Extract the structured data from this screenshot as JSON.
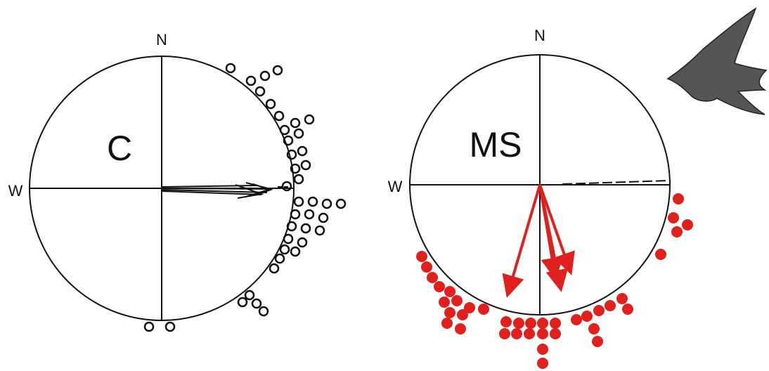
{
  "panels": [
    {
      "north": "N",
      "west": "W",
      "label": "C"
    },
    {
      "north": "N",
      "west": "W",
      "label": "MS"
    }
  ]
}
